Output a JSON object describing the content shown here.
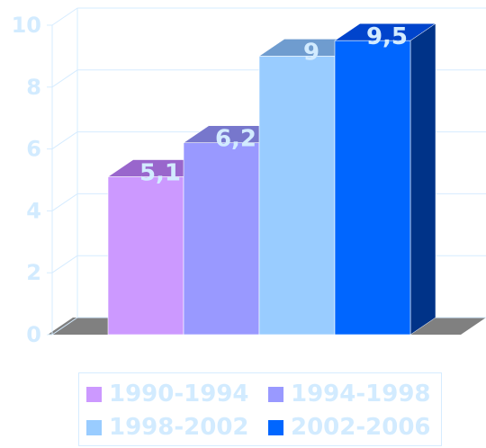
{
  "colors": {
    "tick": "#d2ebff",
    "grid": "#d6ecff",
    "floor": "#808080",
    "label": "#d2ebff",
    "legendText": "#d2ebff"
  },
  "chart_data": {
    "type": "bar",
    "title": "",
    "xlabel": "",
    "ylabel": "",
    "ylim": [
      0,
      10
    ],
    "yticks": [
      "0",
      "2",
      "4",
      "6",
      "8",
      "10"
    ],
    "grid": true,
    "legend_position": "bottom",
    "series": [
      {
        "name": "1990-1994",
        "value": 5.1,
        "label": "5,1",
        "color": "#cc99ff",
        "top": "#9966cc",
        "side": "#9966cc"
      },
      {
        "name": "1994-1998",
        "value": 6.2,
        "label": "6,2",
        "color": "#9999ff",
        "top": "#7777cc",
        "side": "#6666cc"
      },
      {
        "name": "1998-2002",
        "value": 9,
        "label": "9",
        "color": "#99ccff",
        "top": "#6f9ccf",
        "side": "#6699cc"
      },
      {
        "name": "2002-2006",
        "value": 9.5,
        "label": "9,5",
        "color": "#0066ff",
        "top": "#0044cc",
        "side": "#003388"
      }
    ]
  }
}
